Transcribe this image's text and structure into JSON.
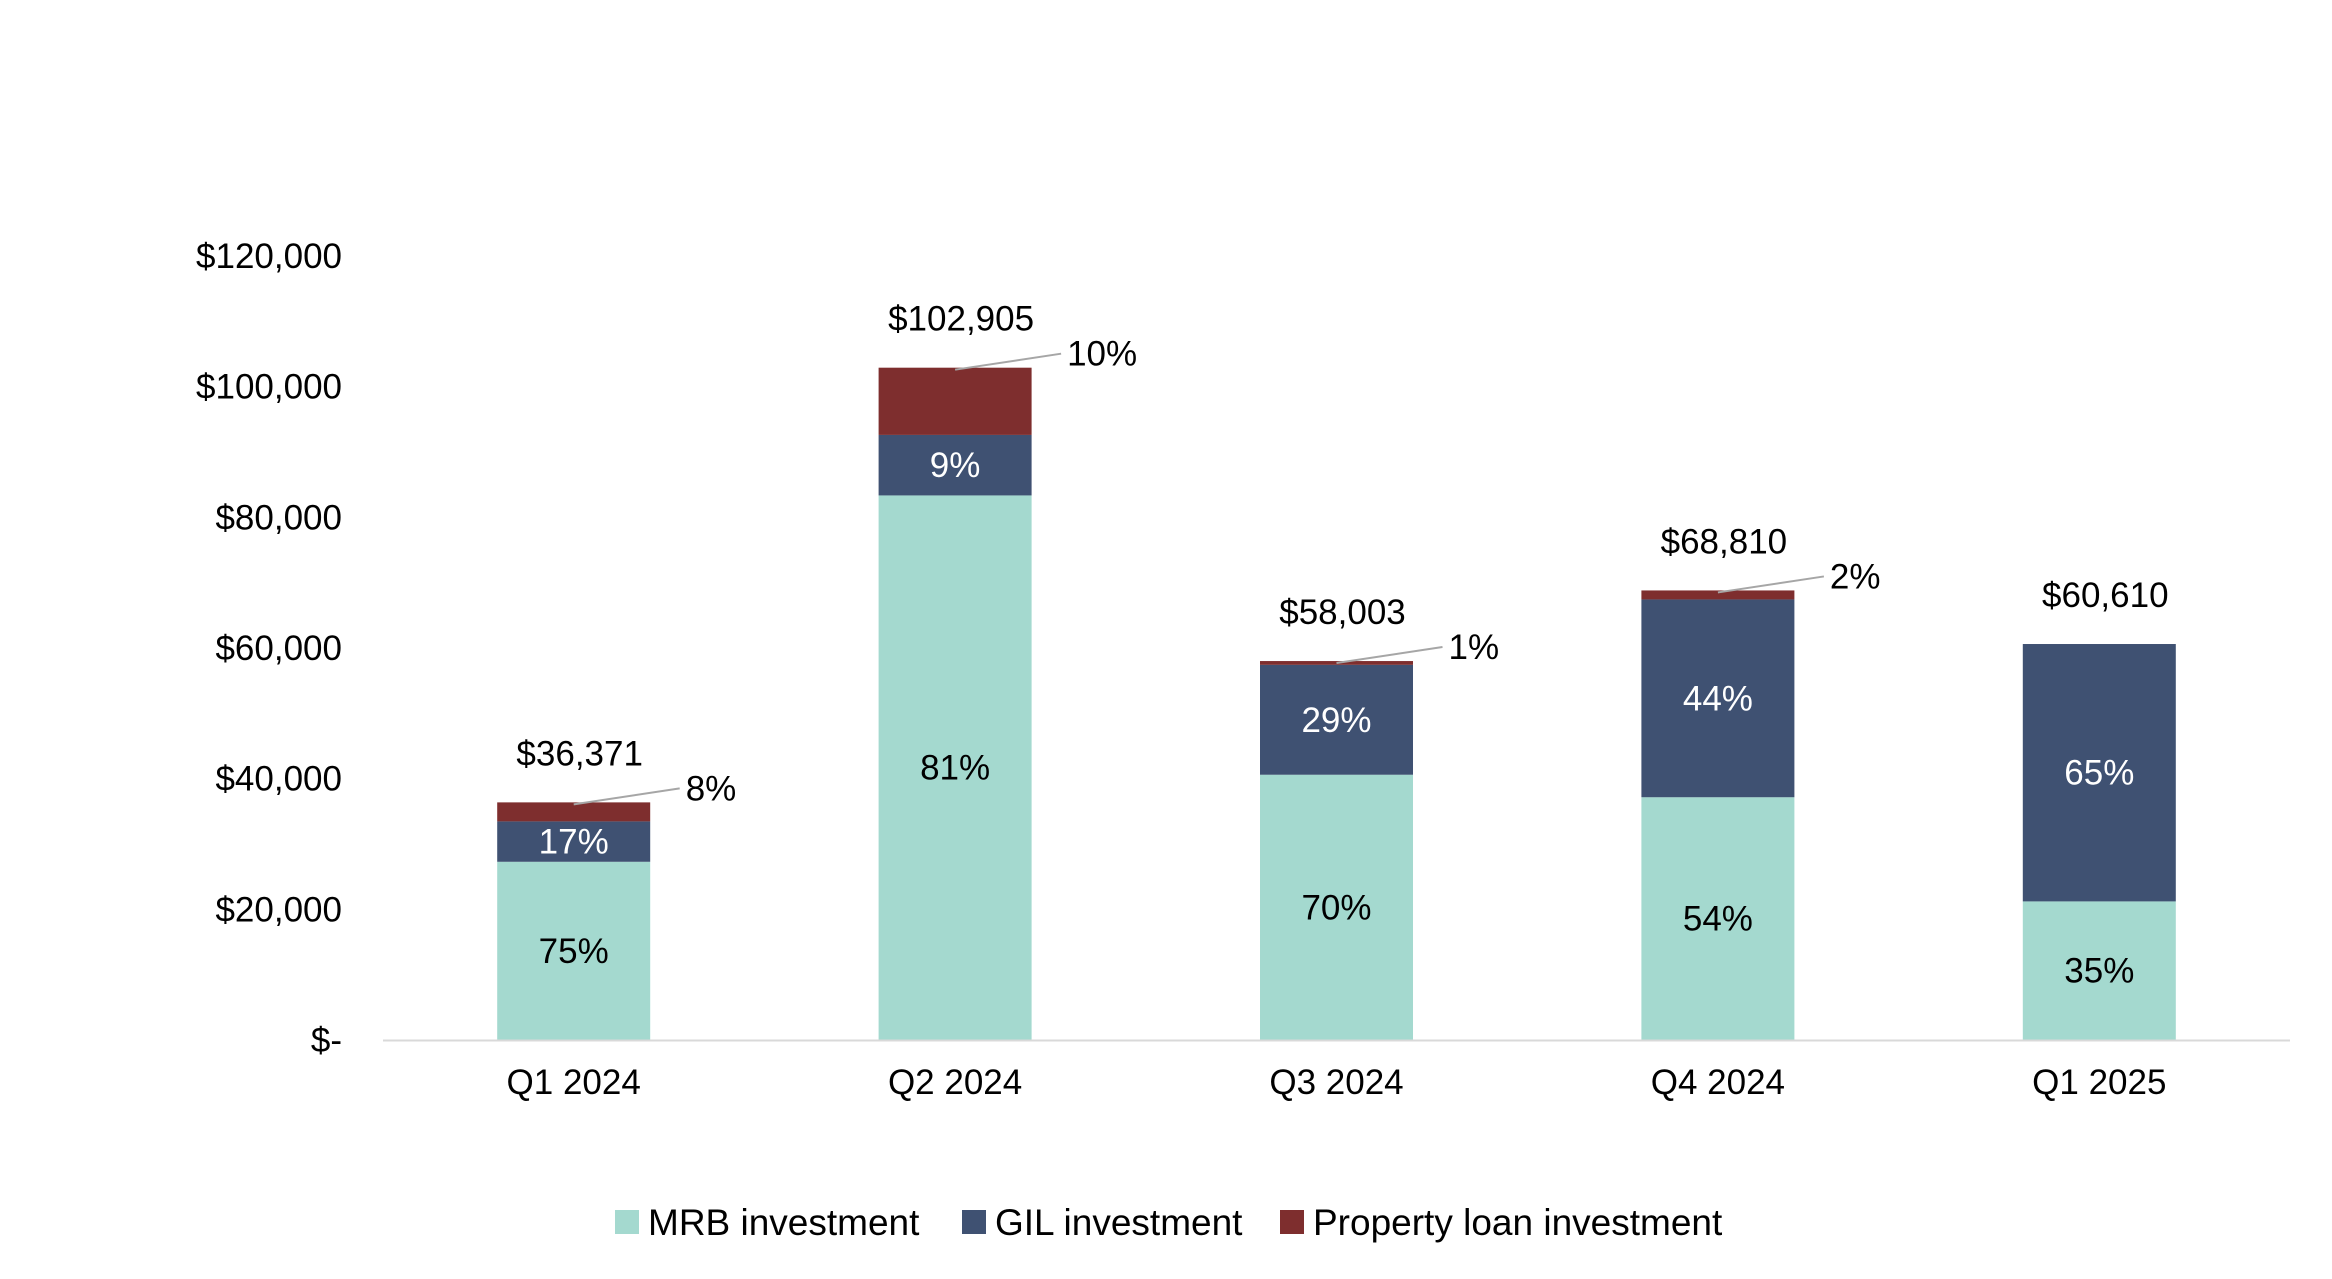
{
  "chart_data": {
    "type": "bar",
    "stacked": true,
    "title": "",
    "xlabel": "",
    "ylabel": "",
    "ylim": [
      0,
      120000
    ],
    "yticks": [
      {
        "value": 0,
        "label": "$-"
      },
      {
        "value": 20000,
        "label": "$20,000"
      },
      {
        "value": 40000,
        "label": "$40,000"
      },
      {
        "value": 60000,
        "label": "$60,000"
      },
      {
        "value": 80000,
        "label": "$80,000"
      },
      {
        "value": 100000,
        "label": "$100,000"
      },
      {
        "value": 120000,
        "label": "$120,000"
      }
    ],
    "categories": [
      "Q1 2024",
      "Q2 2024",
      "Q3 2024",
      "Q4 2024",
      "Q1 2025"
    ],
    "totals": [
      36371,
      102905,
      58003,
      68810,
      60610
    ],
    "total_labels": [
      "$36,371",
      "$102,905",
      "$58,003",
      "$68,810",
      "$60,610"
    ],
    "series": [
      {
        "name": "MRB investment",
        "color": "#a4d9cf",
        "label_color": "#000000",
        "values": [
          27278,
          83353,
          40602,
          37157,
          21214
        ],
        "labels": [
          "75%",
          "81%",
          "70%",
          "54%",
          "35%"
        ]
      },
      {
        "name": "GIL investment",
        "color": "#3f5172",
        "label_color": "#ffffff",
        "values": [
          6183,
          9261,
          16821,
          30276,
          39396
        ],
        "labels": [
          "17%",
          "9%",
          "29%",
          "44%",
          "65%"
        ]
      },
      {
        "name": "Property loan investment",
        "color": "#7e2e2e",
        "label_color": "#000000",
        "values": [
          2910,
          10291,
          580,
          1377,
          0
        ],
        "labels": [
          "8%",
          "10%",
          "1%",
          "2%",
          ""
        ]
      }
    ],
    "legend_position": "bottom",
    "grid": false
  }
}
